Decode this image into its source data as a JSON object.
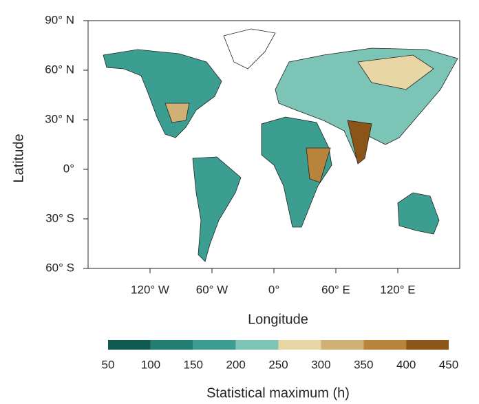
{
  "chart_data": {
    "type": "map",
    "xlabel": "Longitude",
    "ylabel": "Latitude",
    "xlim": [
      -180,
      180
    ],
    "ylim": [
      -60,
      90
    ],
    "xticks": [
      {
        "value": -120,
        "label": "120° W"
      },
      {
        "value": -60,
        "label": "60° W"
      },
      {
        "value": 0,
        "label": "0°"
      },
      {
        "value": 60,
        "label": "60° E"
      },
      {
        "value": 120,
        "label": "120° E"
      }
    ],
    "yticks": [
      {
        "value": 90,
        "label": "90° N"
      },
      {
        "value": 60,
        "label": "60° N"
      },
      {
        "value": 30,
        "label": "30° N"
      },
      {
        "value": 0,
        "label": "0°"
      },
      {
        "value": -30,
        "label": "30° S"
      },
      {
        "value": -60,
        "label": "60° S"
      }
    ],
    "colorbar": {
      "label": "Statistical maximum (h)",
      "bounds": [
        50,
        100,
        150,
        200,
        250,
        300,
        350,
        400,
        450
      ],
      "colors": [
        "#0e5a4f",
        "#217f72",
        "#3b9e90",
        "#7cc4b6",
        "#e8d7a5",
        "#d1b076",
        "#b8843c",
        "#8a5517"
      ]
    }
  }
}
